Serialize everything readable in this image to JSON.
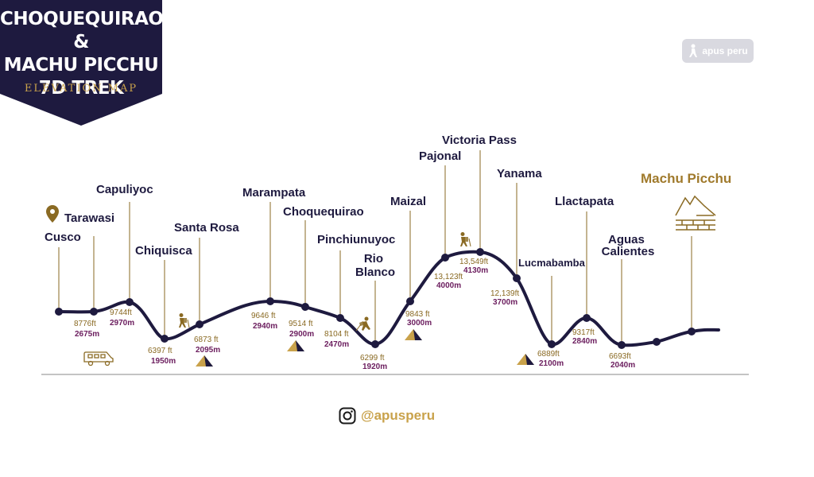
{
  "badge": {
    "title_lines": [
      "CHOQUEQUIRAO &",
      "MACHU PICCHU",
      "7D TREK"
    ],
    "subtitle": "ELEVATION MAP"
  },
  "logo": {
    "text": "apus peru",
    "icon": "hiker-logo-icon"
  },
  "footer": {
    "icon": "instagram-icon",
    "handle": "@apusperu"
  },
  "colors": {
    "navy": "#1e1a3f",
    "gold": "#a07a2c",
    "purple": "#6b1d5e",
    "ft_gold": "#8a6a23"
  },
  "places": [
    {
      "name": "Cusco"
    },
    {
      "name": "Tarawasi",
      "icon": "location-pin-icon"
    },
    {
      "name": "Capuliyoc"
    },
    {
      "name": "Chiquisca"
    },
    {
      "name": "Santa Rosa"
    },
    {
      "name": "Marampata"
    },
    {
      "name": "Choquequirao"
    },
    {
      "name": "Pinchiunuyoc"
    },
    {
      "name": "Rio Blanco"
    },
    {
      "name": "Maizal"
    },
    {
      "name": "Pajonal"
    },
    {
      "name": "Victoria Pass"
    },
    {
      "name": "Yanama"
    },
    {
      "name": "Lucmabamba"
    },
    {
      "name": "Llactapata"
    },
    {
      "name": "Aguas Calientes"
    },
    {
      "name": "Machu Picchu",
      "icon": "machu-picchu-ruins-icon"
    }
  ],
  "elevations": [
    {
      "ft": "8776ft",
      "m": "2675m"
    },
    {
      "ft": "9744ft",
      "m": "2970m"
    },
    {
      "ft": "6397 ft",
      "m": "1950m"
    },
    {
      "ft": "6873 ft",
      "m": "2095m"
    },
    {
      "ft": "9646 ft",
      "m": "2940m"
    },
    {
      "ft": "9514 ft",
      "m": "2900m"
    },
    {
      "ft": "8104 ft",
      "m": "2470m"
    },
    {
      "ft": "6299 ft",
      "m": "1920m"
    },
    {
      "ft": "9843 ft",
      "m": "3000m"
    },
    {
      "ft": "13,123ft",
      "m": "4000m"
    },
    {
      "ft": "13,549ft",
      "m": "4130m"
    },
    {
      "ft": "12,139ft",
      "m": "3700m"
    },
    {
      "ft": "6889ft",
      "m": "2100m"
    },
    {
      "ft": "9317ft",
      "m": "2840m"
    },
    {
      "ft": "6693ft",
      "m": "2040m"
    }
  ],
  "icons": [
    "van-icon",
    "hiker-icon",
    "tent-icon"
  ]
}
